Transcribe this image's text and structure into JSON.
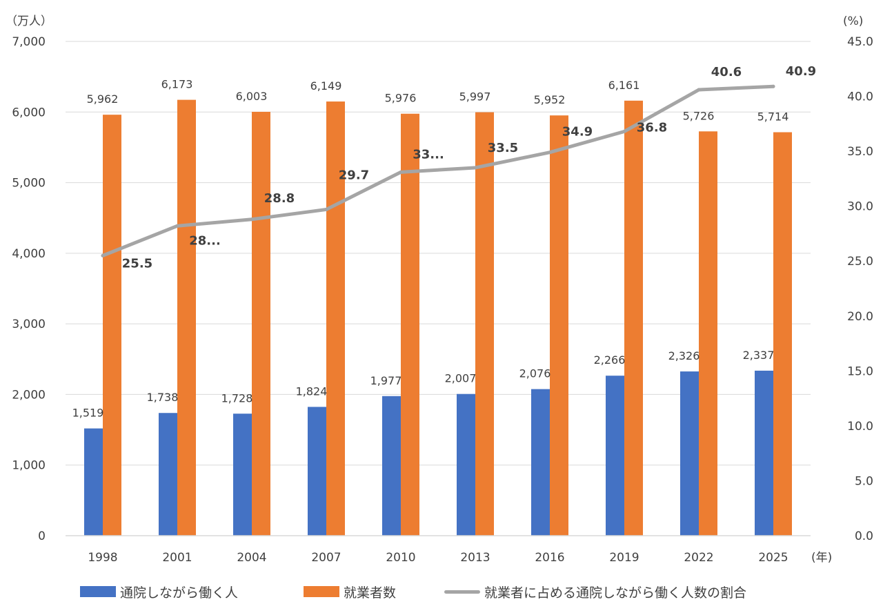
{
  "chart_data": {
    "type": "bar",
    "categories": [
      "1998",
      "2001",
      "2004",
      "2007",
      "2010",
      "2013",
      "2016",
      "2019",
      "2022",
      "2025"
    ],
    "x_unit": "(年)",
    "y_left_unit": "（万人）",
    "y_right_unit": "(%)",
    "ylim_left": [
      0,
      7000
    ],
    "ylim_right": [
      0,
      45
    ],
    "y_left_ticks": [
      "0",
      "1,000",
      "2,000",
      "3,000",
      "4,000",
      "5,000",
      "6,000",
      "7,000"
    ],
    "y_right_ticks": [
      "0.0",
      "5.0",
      "10.0",
      "15.0",
      "20.0",
      "25.0",
      "30.0",
      "35.0",
      "40.0",
      "45.0"
    ],
    "grid": true,
    "legend_position": "bottom",
    "series": [
      {
        "name": "通院しながら働く人",
        "type": "bar",
        "axis": "left",
        "color": "#4472C4",
        "values": [
          1519,
          1738,
          1728,
          1824,
          1977,
          2007,
          2076,
          2266,
          2326,
          2337
        ],
        "labels": [
          "1,519",
          "1,738",
          "1,728",
          "1,824",
          "1,977",
          "2,007",
          "2,076",
          "2,266",
          "2,326",
          "2,337"
        ]
      },
      {
        "name": "就業者数",
        "type": "bar",
        "axis": "left",
        "color": "#ED7D31",
        "values": [
          5962,
          6173,
          6003,
          6149,
          5976,
          5997,
          5952,
          6161,
          5726,
          5714
        ],
        "labels": [
          "5,962",
          "6,173",
          "6,003",
          "6,149",
          "5,976",
          "5,997",
          "5,952",
          "6,161",
          "5,726",
          "5,714"
        ]
      },
      {
        "name": "就業者に占める通院しながら働く人数の割合",
        "type": "line",
        "axis": "right",
        "color": "#A5A5A5",
        "values": [
          25.5,
          28.2,
          28.8,
          29.7,
          33.1,
          33.5,
          34.9,
          36.8,
          40.6,
          40.9
        ],
        "labels": [
          "25.5",
          "28...",
          "28.8",
          "29.7",
          "33...",
          "33.5",
          "34.9",
          "36.8",
          "40.6",
          "40.9"
        ]
      }
    ]
  }
}
